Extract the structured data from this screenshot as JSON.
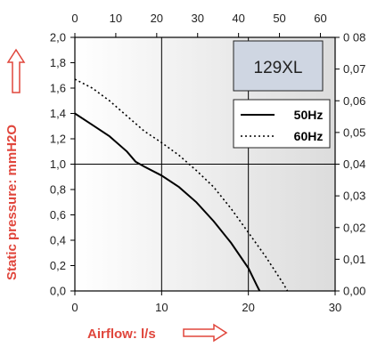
{
  "chart_data": {
    "type": "line",
    "model_label": "129XL",
    "xlabel": "Airflow: l/s",
    "ylabel": "Static pressure: mmH2O",
    "xlim": [
      0,
      30
    ],
    "ylim": [
      0,
      2.0
    ],
    "x_ticks": [
      "0",
      "10",
      "20",
      "30"
    ],
    "y_ticks": [
      "0,0",
      "0,2",
      "0,4",
      "0,6",
      "0,8",
      "1,0",
      "1,2",
      "1,4",
      "1,6",
      "1,8",
      "2,0"
    ],
    "top_axis": {
      "lim": [
        0,
        63.6
      ],
      "ticks": [
        0,
        10,
        20,
        30,
        40,
        50,
        60
      ],
      "labels": [
        "0",
        "10",
        "20",
        "30",
        "40",
        "50",
        "60"
      ]
    },
    "right_axis": {
      "lim": [
        0,
        0.08
      ],
      "ticks": [
        0,
        0.01,
        0.02,
        0.03,
        0.04,
        0.05,
        0.06,
        0.07,
        0.08
      ],
      "labels": [
        "0,00",
        "0,01",
        "0,02",
        "0,03",
        "0,04",
        "0,05",
        "0,06",
        "0,07",
        "0 08"
      ]
    },
    "grid": true,
    "legend_position": "top-right",
    "series": [
      {
        "name": "50Hz",
        "style": "solid",
        "color": "#000000",
        "points": [
          [
            0,
            1.4
          ],
          [
            2,
            1.31
          ],
          [
            4,
            1.22
          ],
          [
            6,
            1.1
          ],
          [
            7,
            1.02
          ],
          [
            8,
            0.98
          ],
          [
            10,
            0.91
          ],
          [
            12,
            0.82
          ],
          [
            14,
            0.7
          ],
          [
            16,
            0.55
          ],
          [
            18,
            0.38
          ],
          [
            20,
            0.18
          ],
          [
            21,
            0.04
          ],
          [
            21.3,
            0.0
          ]
        ]
      },
      {
        "name": "60Hz",
        "style": "dotted",
        "color": "#000000",
        "points": [
          [
            0,
            1.67
          ],
          [
            2,
            1.6
          ],
          [
            4,
            1.5
          ],
          [
            6,
            1.38
          ],
          [
            8,
            1.26
          ],
          [
            10,
            1.17
          ],
          [
            12,
            1.07
          ],
          [
            14,
            0.95
          ],
          [
            16,
            0.82
          ],
          [
            18,
            0.65
          ],
          [
            20,
            0.46
          ],
          [
            22,
            0.27
          ],
          [
            24,
            0.06
          ],
          [
            24.5,
            0.0
          ]
        ]
      }
    ]
  }
}
